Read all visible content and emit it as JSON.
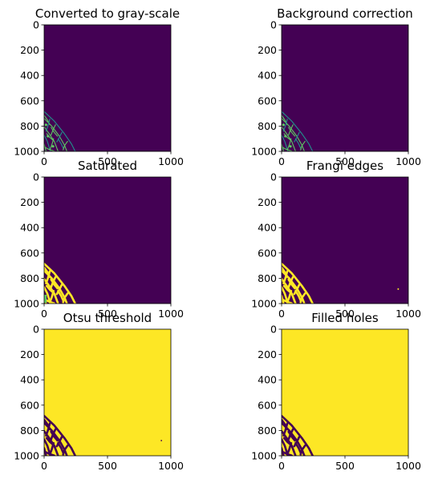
{
  "figure": {
    "colors": {
      "background_purple": "#440154",
      "foreground_yellow": "#fde725",
      "mid_green": "#5ec962",
      "mid_teal": "#21918c",
      "mid_blue": "#3b528b"
    }
  },
  "chart_data": [
    {
      "type": "heatmap",
      "title": "Converted to gray-scale",
      "xlim": [
        0,
        1000
      ],
      "ylim": [
        1000,
        0
      ],
      "xticks": [
        "0",
        "500",
        "1000"
      ],
      "yticks": [
        "0",
        "200",
        "400",
        "600",
        "800",
        "1000"
      ],
      "background_color": "#440154",
      "feature_color": "#5ec962",
      "feature_style": "thin-edges",
      "feature_region": "lower-left corner, x 0-250, y 680-1000"
    },
    {
      "type": "heatmap",
      "title": "Background correction",
      "xlim": [
        0,
        1000
      ],
      "ylim": [
        1000,
        0
      ],
      "xticks": [
        "0",
        "500",
        "1000"
      ],
      "yticks": [
        "0",
        "200",
        "400",
        "600",
        "800",
        "1000"
      ],
      "background_color": "#440154",
      "feature_color": "#5ec962",
      "feature_style": "thin-edges",
      "feature_region": "lower-left corner, x 0-250, y 680-1000"
    },
    {
      "type": "heatmap",
      "title": "Saturated",
      "xlim": [
        0,
        1000
      ],
      "ylim": [
        1000,
        0
      ],
      "xticks": [
        "0",
        "500",
        "1000"
      ],
      "yticks": [
        "0",
        "200",
        "400",
        "600",
        "800",
        "1000"
      ],
      "background_color": "#440154",
      "feature_color": "#fde725",
      "feature_style": "thick-edges",
      "feature_region": "lower-left corner, x 0-250, y 680-1000"
    },
    {
      "type": "heatmap",
      "title": "Frangi edges",
      "xlim": [
        0,
        1000
      ],
      "ylim": [
        1000,
        0
      ],
      "xticks": [
        "0",
        "500",
        "1000"
      ],
      "yticks": [
        "0",
        "200",
        "400",
        "600",
        "800",
        "1000"
      ],
      "background_color": "#440154",
      "feature_color": "#fde725",
      "feature_style": "thick-edges",
      "feature_region": "lower-left corner, x 0-250, y 680-1000"
    },
    {
      "type": "heatmap",
      "title": "Otsu threshold",
      "xlim": [
        0,
        1000
      ],
      "ylim": [
        1000,
        0
      ],
      "xticks": [
        "0",
        "500",
        "1000"
      ],
      "yticks": [
        "0",
        "200",
        "400",
        "600",
        "800",
        "1000"
      ],
      "background_color": "#fde725",
      "feature_color": "#440154",
      "feature_style": "thick-edges",
      "feature_region": "lower-left corner, x 0-250, y 670-1000"
    },
    {
      "type": "heatmap",
      "title": "Filled holes",
      "xlim": [
        0,
        1000
      ],
      "ylim": [
        1000,
        0
      ],
      "xticks": [
        "0",
        "500",
        "1000"
      ],
      "yticks": [
        "0",
        "200",
        "400",
        "600",
        "800",
        "1000"
      ],
      "background_color": "#fde725",
      "feature_color": "#440154",
      "feature_style": "thick-edges",
      "feature_region": "lower-left corner, x 0-250, y 670-1000"
    }
  ]
}
